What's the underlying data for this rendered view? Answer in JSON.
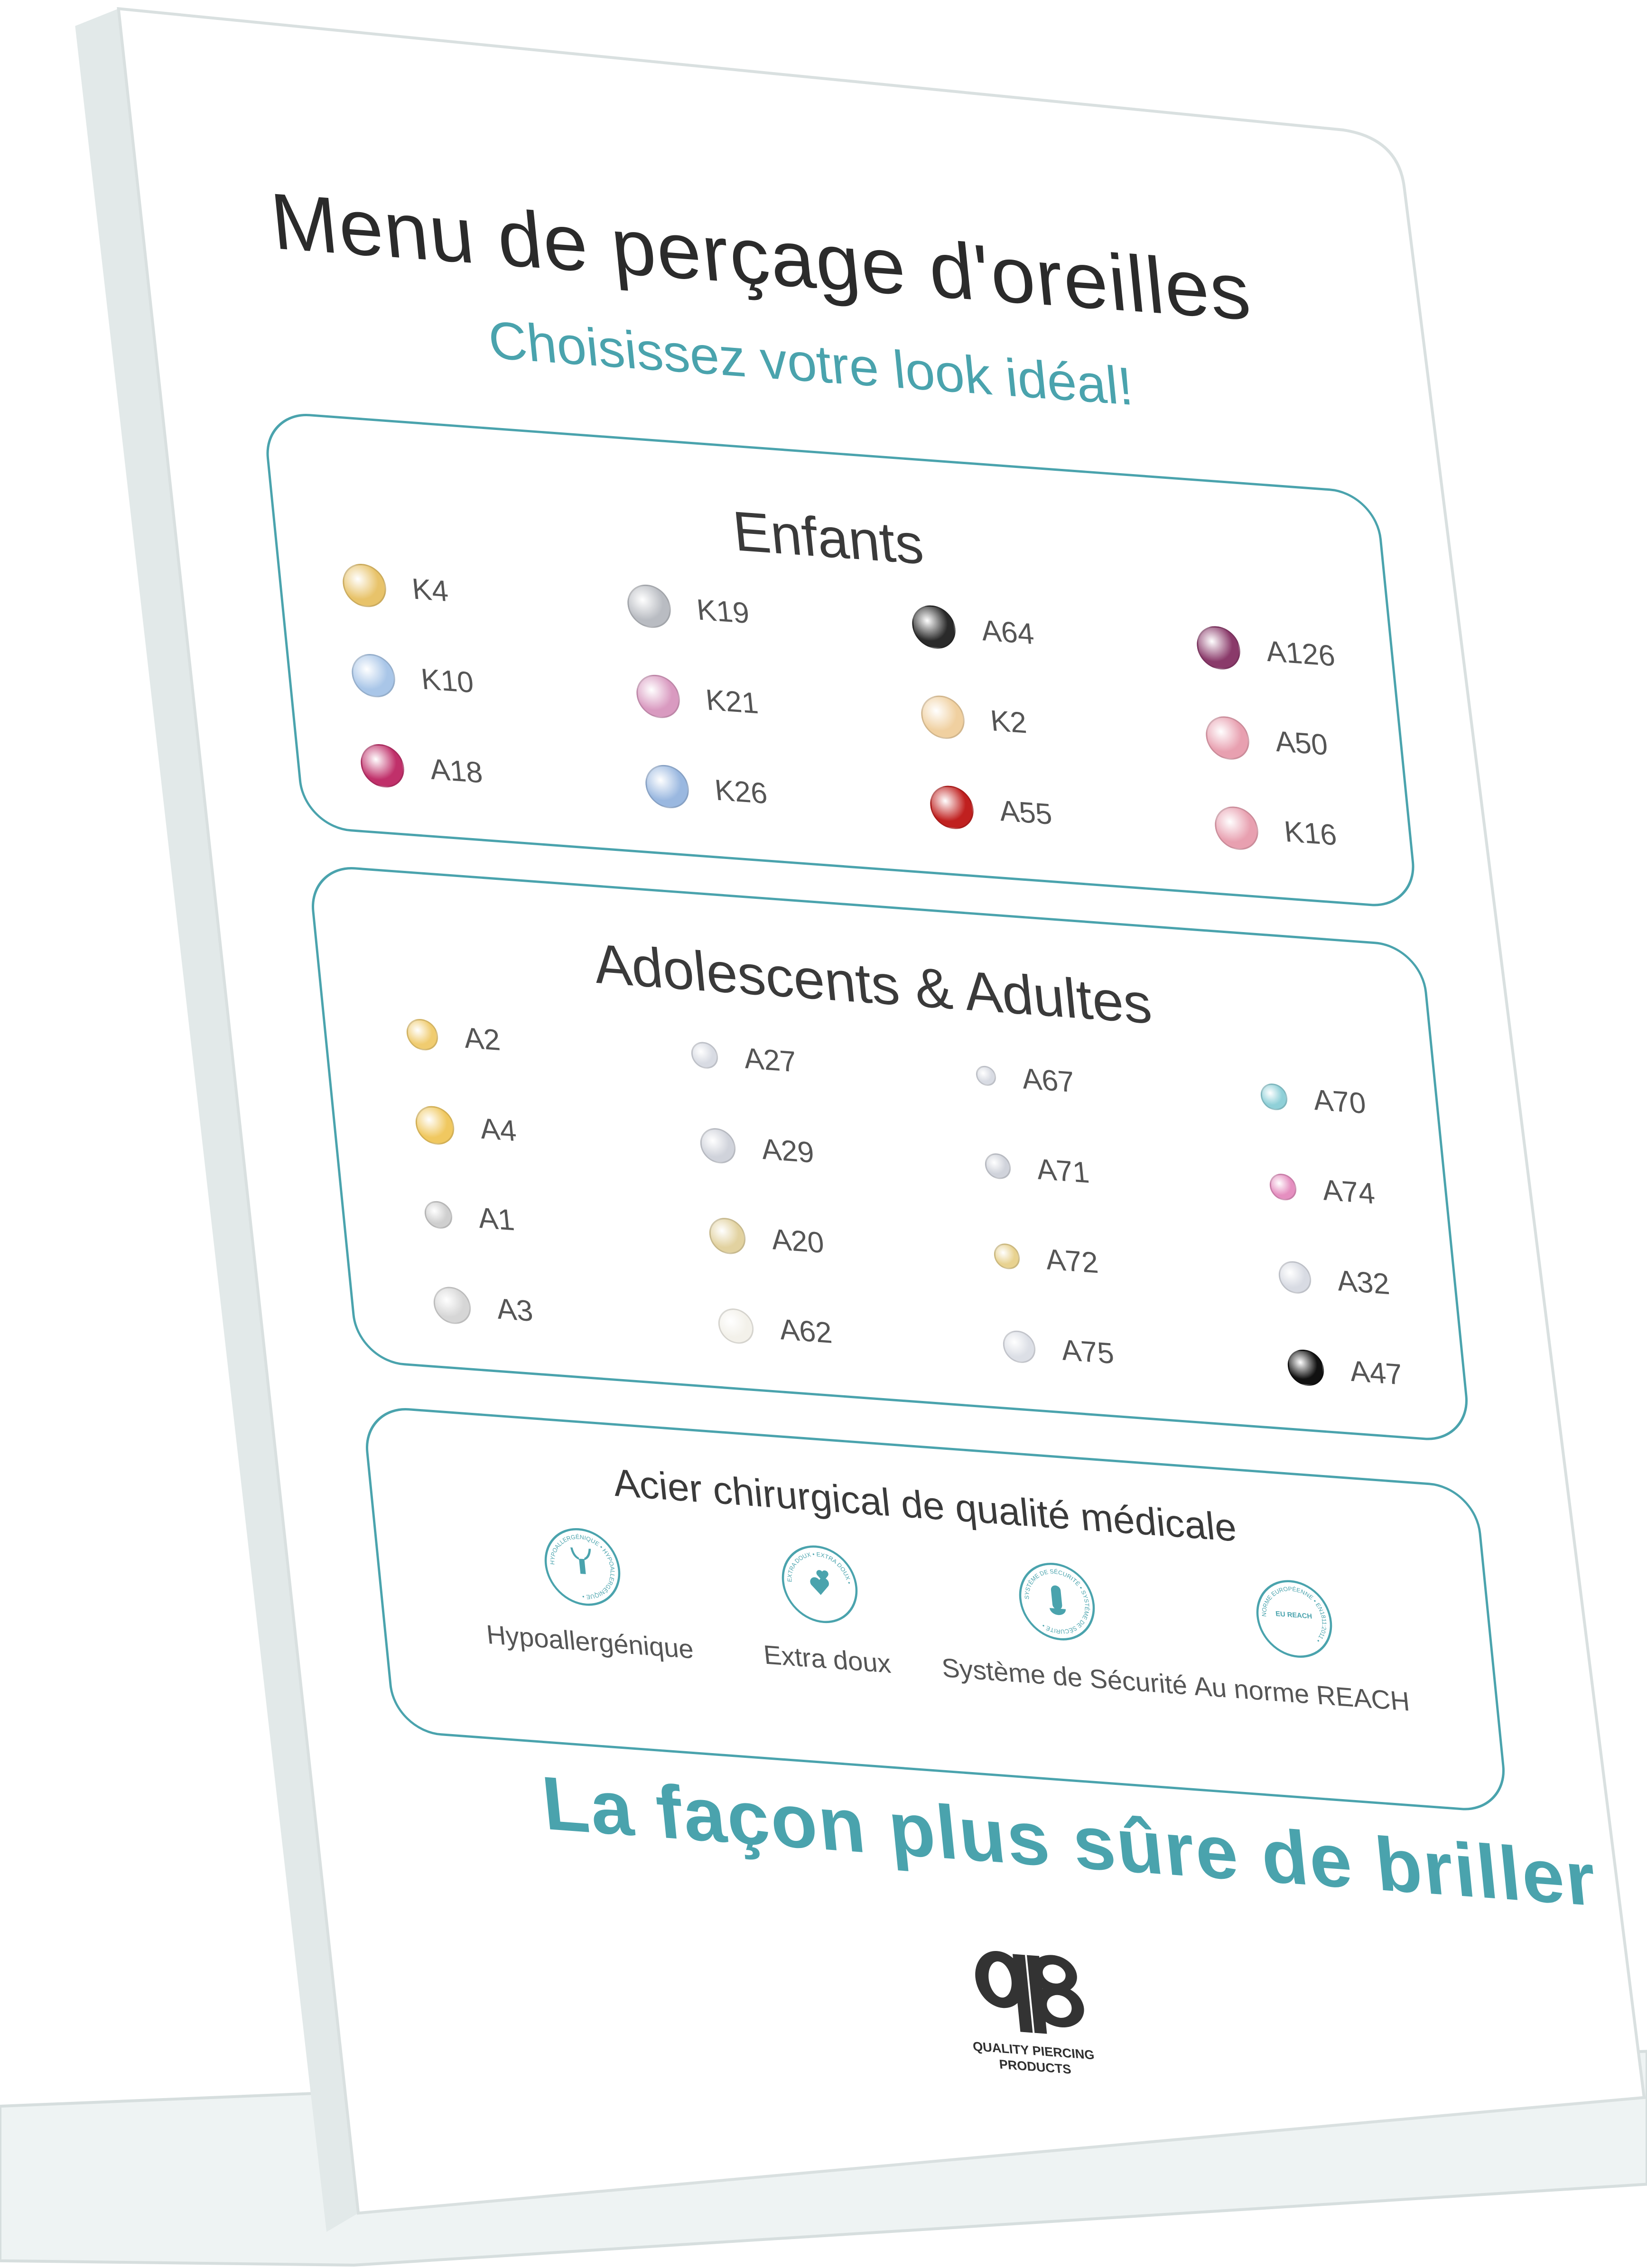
{
  "header": {
    "title": "Menu de perçage d'oreilles",
    "subtitle": "Choisissez votre look idéal!"
  },
  "colors": {
    "accent": "#4aa3ad",
    "text": "#2b2b2b"
  },
  "sections": {
    "kids": {
      "title": "Enfants",
      "items": [
        {
          "code": "K4",
          "icon": "butterfly-icon",
          "color": "#e8c36a"
        },
        {
          "code": "K19",
          "icon": "flower-icon",
          "color": "#b9bcc2"
        },
        {
          "code": "A64",
          "icon": "panda-icon",
          "color": "#2a2a2a"
        },
        {
          "code": "A126",
          "icon": "unicorn-icon",
          "color": "#8a3a6a"
        },
        {
          "code": "K10",
          "icon": "butterfly-icon",
          "color": "#a9c6e8"
        },
        {
          "code": "K21",
          "icon": "flower-icon",
          "color": "#d99ac0"
        },
        {
          "code": "K2",
          "icon": "bunny-icon",
          "color": "#f0d0a0"
        },
        {
          "code": "A50",
          "icon": "flower-icon",
          "color": "#e8a0b0"
        },
        {
          "code": "A18",
          "icon": "butterfly-icon",
          "color": "#c0306a"
        },
        {
          "code": "K26",
          "icon": "flower-icon",
          "color": "#9ab8e0"
        },
        {
          "code": "A55",
          "icon": "ladybug-icon",
          "color": "#c0201f"
        },
        {
          "code": "K16",
          "icon": "cupcake-icon",
          "color": "#e8a0b0"
        }
      ]
    },
    "adults": {
      "title": "Adolescents & Adultes",
      "items": [
        {
          "code": "A2",
          "icon": "gold-ball-icon",
          "color": "#f0cc70"
        },
        {
          "code": "A27",
          "icon": "crystal-icon",
          "color": "#d8dbe3"
        },
        {
          "code": "A67",
          "icon": "square-crystal-icon",
          "color": "#d8dbe3"
        },
        {
          "code": "A70",
          "icon": "aqua-crystal-icon",
          "color": "#8fd0d8"
        },
        {
          "code": "A4",
          "icon": "gold-ball-icon",
          "color": "#f0c860"
        },
        {
          "code": "A29",
          "icon": "crystal-icon",
          "color": "#d0d3db"
        },
        {
          "code": "A71",
          "icon": "square-crystal-icon",
          "color": "#d0d3db"
        },
        {
          "code": "A74",
          "icon": "pink-crystal-icon",
          "color": "#e58fc0"
        },
        {
          "code": "A1",
          "icon": "silver-ball-icon",
          "color": "#cfcfcf"
        },
        {
          "code": "A20",
          "icon": "crystal-gold-icon",
          "color": "#e2d2a0"
        },
        {
          "code": "A72",
          "icon": "gold-square-crystal-icon",
          "color": "#e8d290"
        },
        {
          "code": "A32",
          "icon": "star-crystal-icon",
          "color": "#d8dbe3"
        },
        {
          "code": "A3",
          "icon": "silver-ball-icon",
          "color": "#d6d6d6"
        },
        {
          "code": "A62",
          "icon": "pearl-icon",
          "color": "#f3f1ea"
        },
        {
          "code": "A75",
          "icon": "square-crystal-icon",
          "color": "#dcdfe6"
        },
        {
          "code": "A47",
          "icon": "black-crystal-icon",
          "color": "#111111"
        }
      ]
    },
    "steel": {
      "title": "Acier chirurgical de qualité médicale",
      "badges": [
        {
          "label": "Hypoallergénique",
          "ring": "HYPOALLERGÉNIQUE • HYPOALLERGÉNIQUE •",
          "icon": "hands-icon"
        },
        {
          "label": "Extra doux",
          "ring": "EXTRA DOUX • EXTRA DOUX •",
          "icon": "hearts-icon"
        },
        {
          "label": "Système de Sécurité",
          "ring": "SYSTÈME DE SÉCURITÉ • SYSTÈME DE SÉCURITÉ •",
          "icon": "safety-clasp-icon"
        },
        {
          "label": "Au norme REACH",
          "ring": "NORME EUROPÉENNE • EN1811:2011 •",
          "center": "EU REACH",
          "icon": "eu-stars-icon"
        }
      ]
    }
  },
  "slogan": "La façon plus sûre de briller",
  "logo": {
    "mark": "qp",
    "text_line1": "QUALITY PIERCING",
    "text_line2": "PRODUCTS"
  }
}
